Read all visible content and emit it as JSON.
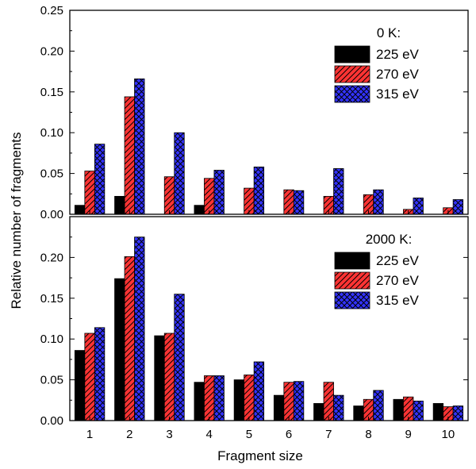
{
  "colors": {
    "series_225": "#000000",
    "series_270": "#ff3333",
    "series_315": "#3333ff",
    "hatch_stroke": "#000000",
    "axis": "#000000"
  },
  "chart_data": {
    "type": "bar",
    "xlabel": "Fragment size",
    "ylabel": "Relative number of fragments",
    "categories": [
      "1",
      "2",
      "3",
      "4",
      "5",
      "6",
      "7",
      "8",
      "9",
      "10"
    ],
    "panels": [
      {
        "legend_title": "0 K:",
        "legend_position": "top-right",
        "ylim": [
          0,
          0.25
        ],
        "yticks": [
          "0.00",
          "0.05",
          "0.10",
          "0.15",
          "0.20",
          "0.25"
        ],
        "series": [
          {
            "name": "225 eV",
            "pattern": "solid",
            "values": [
              0.011,
              0.022,
              0.0,
              0.011,
              0.0,
              0.0,
              0.0,
              0.0,
              0.0,
              0.0
            ]
          },
          {
            "name": "270 eV",
            "pattern": "diagonal-hatch",
            "values": [
              0.053,
              0.144,
              0.046,
              0.044,
              0.032,
              0.03,
              0.022,
              0.024,
              0.006,
              0.008
            ]
          },
          {
            "name": "315 eV",
            "pattern": "cross-hatch",
            "values": [
              0.086,
              0.166,
              0.1,
              0.054,
              0.058,
              0.029,
              0.056,
              0.03,
              0.02,
              0.018
            ]
          }
        ]
      },
      {
        "legend_title": "2000 K:",
        "legend_position": "top-right",
        "ylim": [
          0,
          0.25
        ],
        "yticks": [
          "0.00",
          "0.05",
          "0.10",
          "0.15",
          "0.20"
        ],
        "series": [
          {
            "name": "225 eV",
            "pattern": "solid",
            "values": [
              0.086,
              0.174,
              0.104,
              0.047,
              0.05,
              0.031,
              0.021,
              0.018,
              0.026,
              0.021
            ]
          },
          {
            "name": "270 eV",
            "pattern": "diagonal-hatch",
            "values": [
              0.107,
              0.201,
              0.107,
              0.055,
              0.056,
              0.047,
              0.047,
              0.026,
              0.029,
              0.017
            ]
          },
          {
            "name": "315 eV",
            "pattern": "cross-hatch",
            "values": [
              0.114,
              0.225,
              0.155,
              0.055,
              0.072,
              0.048,
              0.031,
              0.037,
              0.024,
              0.018
            ]
          }
        ]
      }
    ]
  }
}
